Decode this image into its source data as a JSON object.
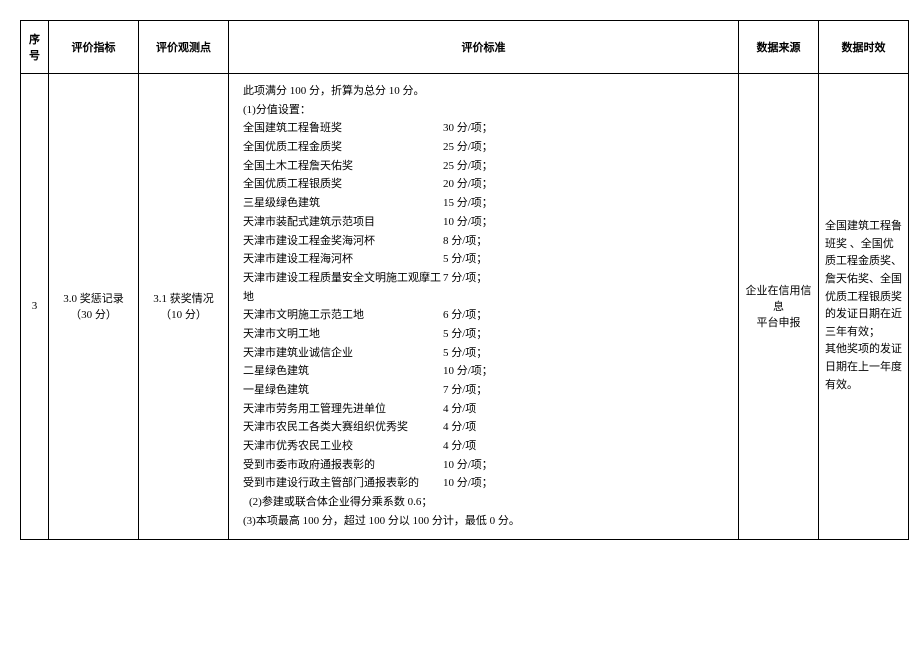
{
  "headers": {
    "seq": "序号",
    "indicator": "评价指标",
    "point": "评价观测点",
    "standard": "评价标准",
    "source": "数据来源",
    "validity": "数据时效"
  },
  "row": {
    "seq": "3",
    "indicator_line1": "3.0 奖惩记录",
    "indicator_line2": "（30 分）",
    "point_line1": "3.1 获奖情况",
    "point_line2": "（10 分）",
    "intro": "此项满分 100 分，折算为总分 10 分。",
    "sub1": "(1)分值设置：",
    "items": [
      {
        "name": "全国建筑工程鲁班奖",
        "score": "30 分/项；"
      },
      {
        "name": "全国优质工程金质奖",
        "score": "25 分/项；"
      },
      {
        "name": "全国土木工程詹天佑奖",
        "score": "25 分/项；"
      },
      {
        "name": "全国优质工程银质奖",
        "score": "20 分/项；"
      },
      {
        "name": "三星级绿色建筑",
        "score": "15 分/项；"
      },
      {
        "name": "天津市装配式建筑示范项目",
        "score": "10 分/项；"
      },
      {
        "name": "天津市建设工程金奖海河杯",
        "score": "8 分/项；"
      },
      {
        "name": "天津市建设工程海河杯",
        "score": "5 分/项；"
      },
      {
        "name": "天津市建设工程质量安全文明施工观摩工地",
        "score": "7 分/项；"
      },
      {
        "name": "天津市文明施工示范工地",
        "score": "6 分/项；"
      },
      {
        "name": "天津市文明工地",
        "score": "5 分/项；"
      },
      {
        "name": "天津市建筑业诚信企业",
        "score": "5 分/项；"
      },
      {
        "name": "二星绿色建筑",
        "score": "10 分/项；"
      },
      {
        "name": "一星绿色建筑",
        "score": "7 分/项；"
      },
      {
        "name": "天津市劳务用工管理先进单位",
        "score": "4 分/项"
      },
      {
        "name": "天津市农民工各类大赛组织优秀奖",
        "score": "4 分/项"
      },
      {
        "name": "天津市优秀农民工业校",
        "score": "4 分/项"
      },
      {
        "name": "受到市委市政府通报表彰的",
        "score": "10 分/项；"
      },
      {
        "name": "受到市建设行政主管部门通报表彰的",
        "score": "10 分/项；"
      }
    ],
    "sub2": "(2)参建或联合体企业得分乘系数 0.6；",
    "sub3": "(3)本项最高 100 分，超过 100 分以 100 分计，最低 0 分。",
    "source_line1": "企业在信用信息",
    "source_line2": "平台申报",
    "validity": "全国建筑工程鲁班奖 、全国优质工程金质奖、詹天佑奖、全国优质工程银质奖的发证日期在近三年有效；\n其他奖项的发证日期在上一年度有效。"
  }
}
